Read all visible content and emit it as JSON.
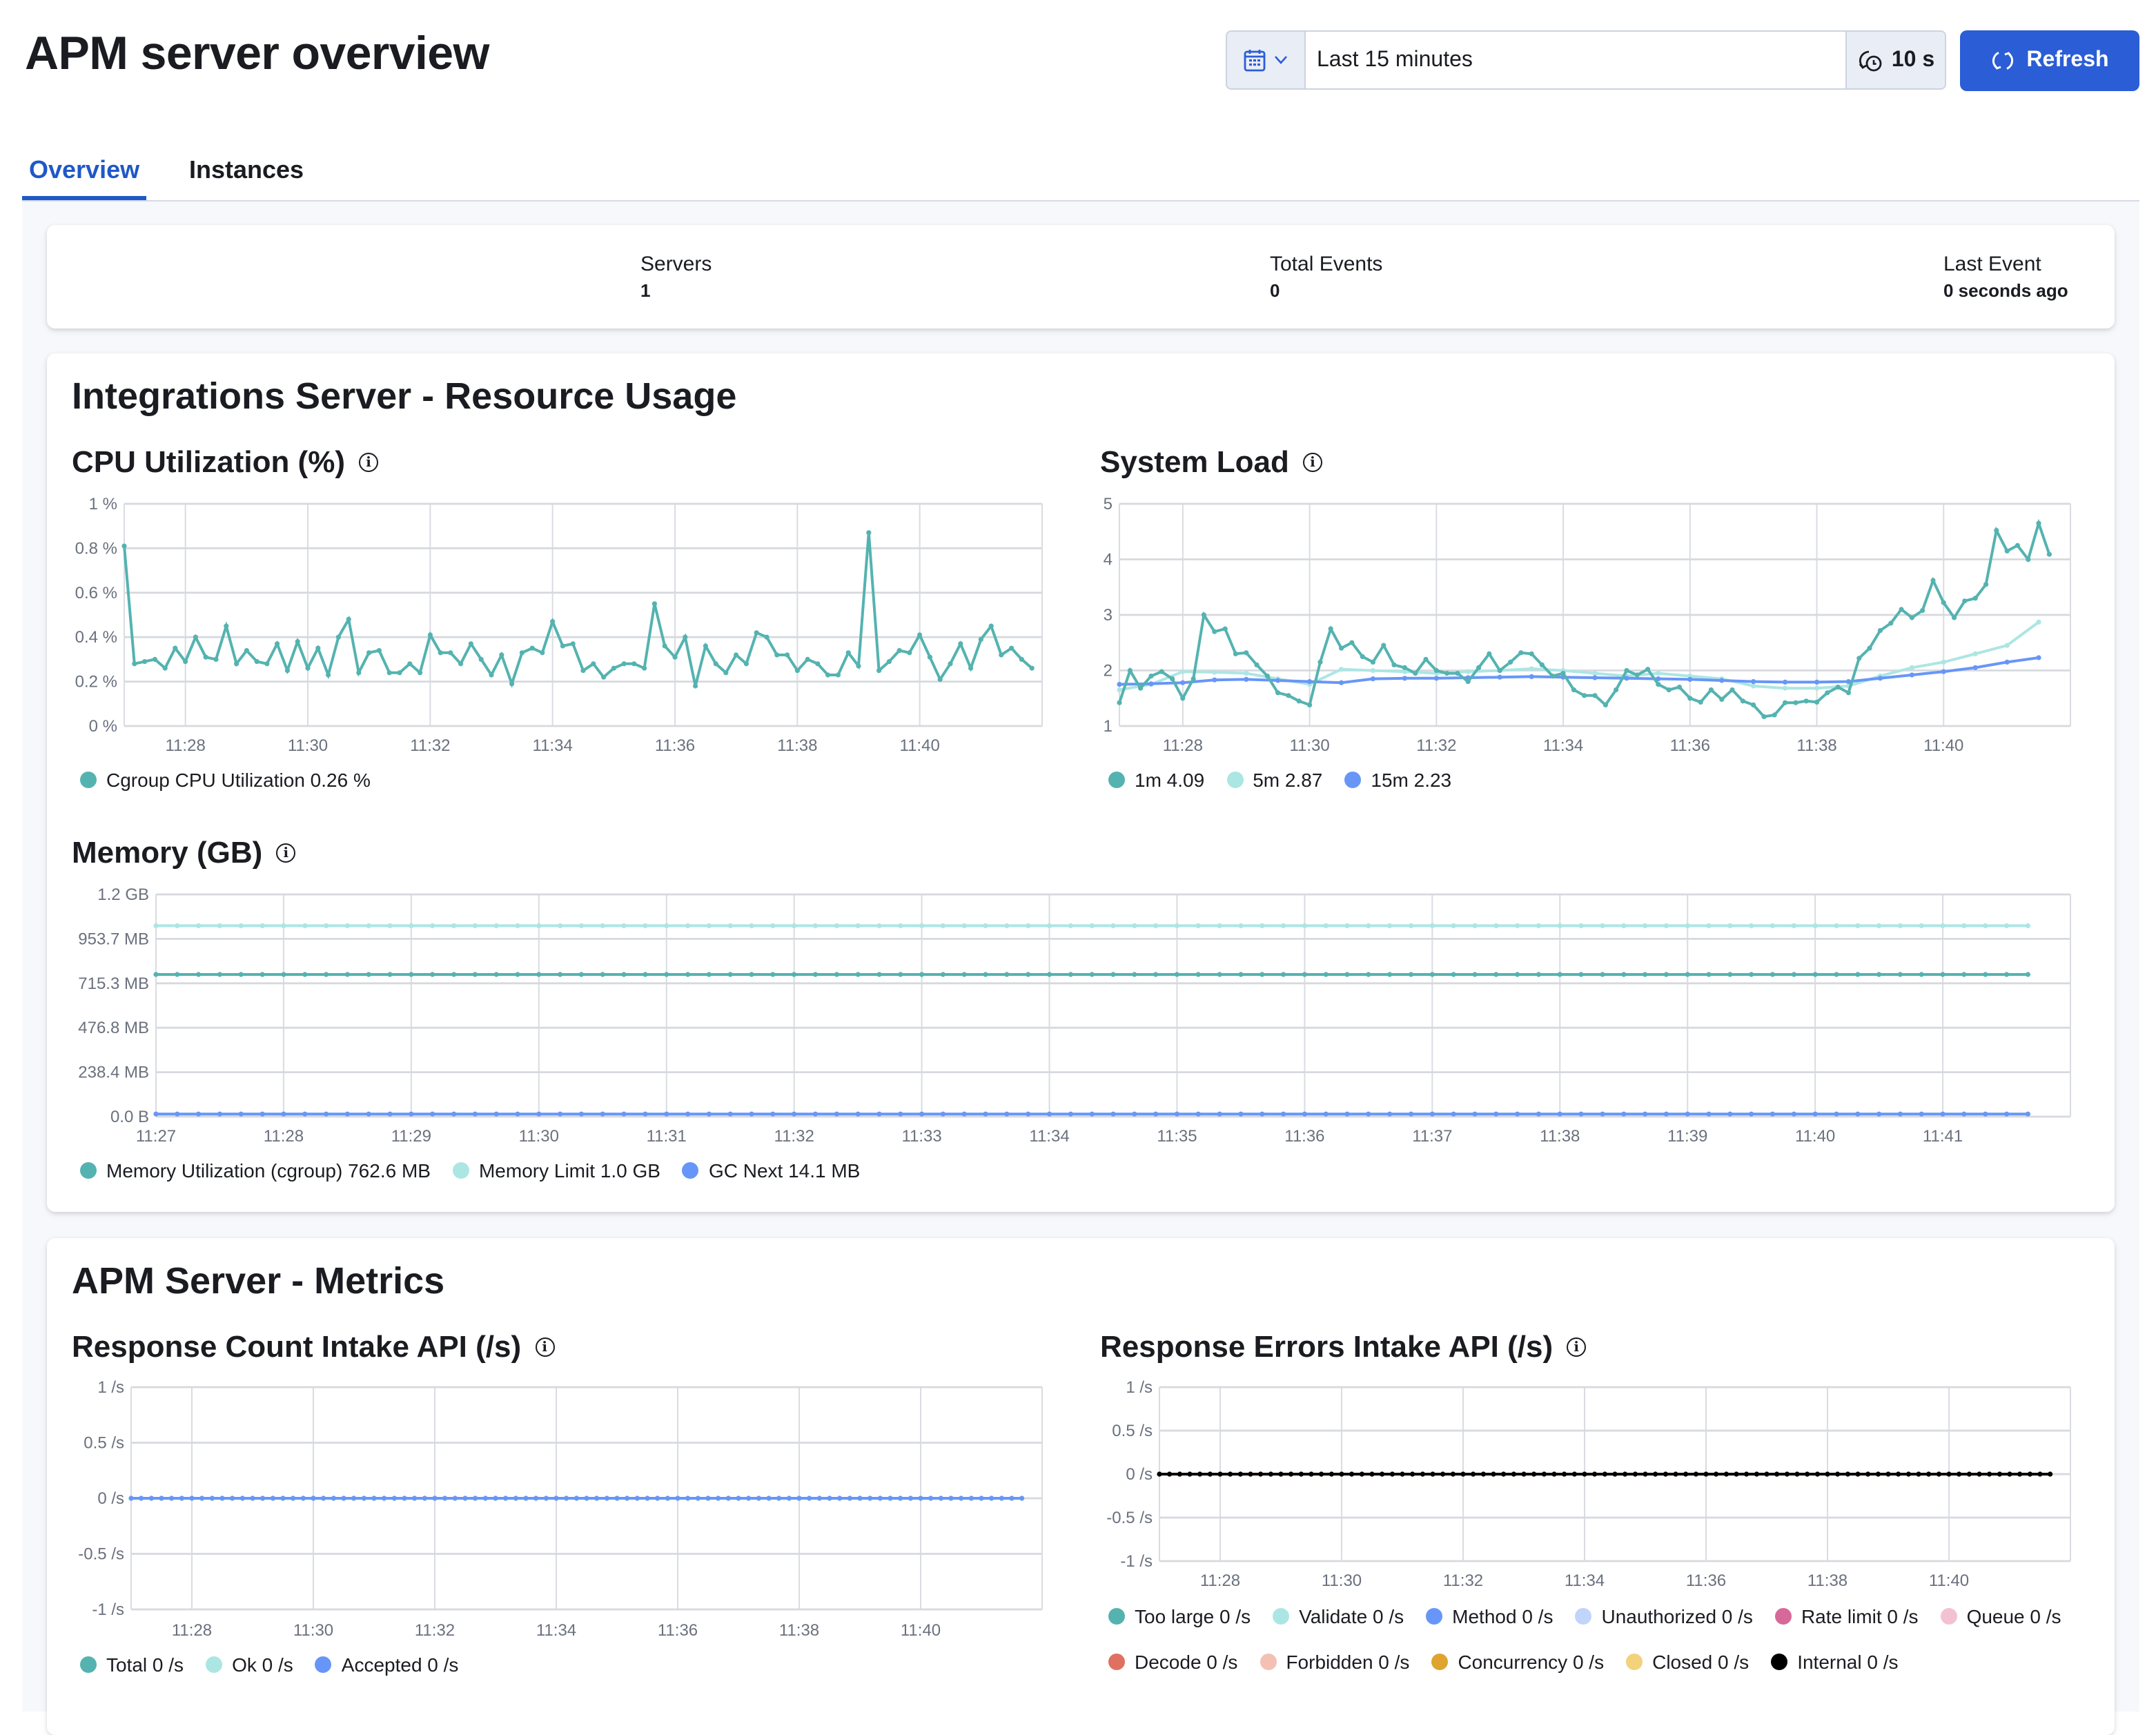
{
  "header": {
    "title": "APM server overview",
    "date_picker": {
      "icon": "calendar-icon",
      "range": "Last 15 minutes",
      "refresh_interval": "10 s"
    },
    "refresh_label": "Refresh",
    "accent": "#2b5dd6"
  },
  "tabs": [
    {
      "label": "Overview",
      "active": true
    },
    {
      "label": "Instances",
      "active": false
    }
  ],
  "stats": [
    {
      "label": "Servers",
      "value": "1"
    },
    {
      "label": "Total Events",
      "value": "0"
    },
    {
      "label": "Last Event",
      "value": "0 seconds ago"
    }
  ],
  "sections": {
    "resource": "Integrations Server - Resource Usage",
    "metrics": "APM Server - Metrics"
  },
  "chart_data": [
    {
      "id": "cpu",
      "type": "line",
      "title": "CPU Utilization (%)",
      "ylim": [
        0,
        1
      ],
      "yticks": [
        {
          "v": 0,
          "label": "0 %"
        },
        {
          "v": 0.2,
          "label": "0.2 %"
        },
        {
          "v": 0.4,
          "label": "0.4 %"
        },
        {
          "v": 0.6,
          "label": "0.6 %"
        },
        {
          "v": 0.8,
          "label": "0.8 %"
        },
        {
          "v": 1,
          "label": "1 %"
        }
      ],
      "xticks": [
        "11:28",
        "11:30",
        "11:32",
        "11:34",
        "11:36",
        "11:38",
        "11:40"
      ],
      "grid": true,
      "legend_position": "bottom-left",
      "series": [
        {
          "name": "Cgroup CPU Utilization",
          "legend": "Cgroup CPU Utilization 0.26 %",
          "color": "#54b3b0",
          "start": "11:27:00",
          "interval_s": 10,
          "values": [
            0.81,
            0.28,
            0.29,
            0.3,
            0.26,
            0.35,
            0.29,
            0.4,
            0.31,
            0.3,
            0.45,
            0.28,
            0.34,
            0.29,
            0.28,
            0.37,
            0.25,
            0.38,
            0.26,
            0.35,
            0.23,
            0.4,
            0.48,
            0.24,
            0.33,
            0.34,
            0.24,
            0.24,
            0.28,
            0.24,
            0.41,
            0.33,
            0.33,
            0.28,
            0.37,
            0.3,
            0.23,
            0.32,
            0.19,
            0.33,
            0.35,
            0.33,
            0.47,
            0.36,
            0.37,
            0.25,
            0.28,
            0.22,
            0.26,
            0.28,
            0.28,
            0.26,
            0.55,
            0.36,
            0.31,
            0.4,
            0.18,
            0.36,
            0.28,
            0.24,
            0.32,
            0.28,
            0.42,
            0.4,
            0.32,
            0.32,
            0.25,
            0.3,
            0.28,
            0.23,
            0.23,
            0.33,
            0.27,
            0.87,
            0.25,
            0.29,
            0.34,
            0.33,
            0.41,
            0.31,
            0.21,
            0.28,
            0.37,
            0.26,
            0.39,
            0.45,
            0.32,
            0.35,
            0.3,
            0.26
          ]
        }
      ]
    },
    {
      "id": "load",
      "type": "line",
      "title": "System Load",
      "ylim": [
        1,
        5
      ],
      "yticks": [
        {
          "v": 1,
          "label": "1"
        },
        {
          "v": 2,
          "label": "2"
        },
        {
          "v": 3,
          "label": "3"
        },
        {
          "v": 4,
          "label": "4"
        },
        {
          "v": 5,
          "label": "5"
        }
      ],
      "xticks": [
        "11:28",
        "11:30",
        "11:32",
        "11:34",
        "11:36",
        "11:38",
        "11:40"
      ],
      "grid": true,
      "legend_position": "bottom-left",
      "series": [
        {
          "name": "5m",
          "legend": "5m 2.87",
          "color": "#ace6e3",
          "start": "11:27:00",
          "interval_s": 30,
          "values": [
            1.65,
            1.75,
            1.98,
            1.97,
            1.95,
            1.85,
            1.75,
            2.02,
            2.0,
            1.98,
            1.95,
            1.98,
            2.0,
            2.03,
            2.0,
            1.95,
            1.9,
            1.95,
            1.9,
            1.85,
            1.72,
            1.68,
            1.68,
            1.72,
            1.9,
            2.05,
            2.15,
            2.3,
            2.45,
            2.87
          ]
        },
        {
          "name": "15m",
          "legend": "15m 2.23",
          "color": "#6896f8",
          "start": "11:27:00",
          "interval_s": 30,
          "values": [
            1.75,
            1.76,
            1.78,
            1.83,
            1.84,
            1.82,
            1.8,
            1.78,
            1.85,
            1.86,
            1.86,
            1.87,
            1.88,
            1.89,
            1.88,
            1.87,
            1.86,
            1.85,
            1.84,
            1.82,
            1.8,
            1.79,
            1.79,
            1.8,
            1.86,
            1.92,
            1.98,
            2.05,
            2.15,
            2.23
          ]
        },
        {
          "name": "1m",
          "legend": "1m 4.09",
          "color": "#54b3b0",
          "start": "11:27:00",
          "interval_s": 10,
          "values": [
            1.42,
            2.0,
            1.68,
            1.9,
            1.98,
            1.85,
            1.5,
            1.85,
            3.0,
            2.7,
            2.75,
            2.3,
            2.32,
            2.1,
            1.9,
            1.6,
            1.55,
            1.45,
            1.38,
            2.15,
            2.75,
            2.4,
            2.5,
            2.25,
            2.15,
            2.45,
            2.1,
            2.05,
            1.95,
            2.2,
            2.0,
            1.95,
            1.95,
            1.8,
            2.05,
            2.3,
            2.0,
            2.15,
            2.32,
            2.3,
            2.1,
            1.9,
            1.95,
            1.65,
            1.55,
            1.55,
            1.38,
            1.65,
            2.0,
            1.92,
            2.02,
            1.75,
            1.65,
            1.7,
            1.5,
            1.43,
            1.65,
            1.48,
            1.65,
            1.45,
            1.38,
            1.17,
            1.2,
            1.42,
            1.42,
            1.45,
            1.43,
            1.6,
            1.7,
            1.6,
            2.22,
            2.4,
            2.72,
            2.85,
            3.1,
            2.95,
            3.08,
            3.62,
            3.22,
            2.95,
            3.25,
            3.3,
            3.55,
            4.52,
            4.15,
            4.25,
            4.0,
            4.65,
            4.09
          ]
        }
      ],
      "legend_order": [
        "1m",
        "5m",
        "15m"
      ]
    },
    {
      "id": "memory",
      "type": "line",
      "title": "Memory (GB)",
      "ylim": [
        0,
        1192.1
      ],
      "yticks": [
        {
          "v": 0,
          "label": "0.0 B"
        },
        {
          "v": 238.4,
          "label": "238.4 MB"
        },
        {
          "v": 476.8,
          "label": "476.8 MB"
        },
        {
          "v": 715.3,
          "label": "715.3 MB"
        },
        {
          "v": 953.7,
          "label": "953.7 MB"
        },
        {
          "v": 1192.1,
          "label": "1.2 GB"
        }
      ],
      "xticks": [
        "11:27",
        "11:28",
        "11:29",
        "11:30",
        "11:31",
        "11:32",
        "11:33",
        "11:34",
        "11:35",
        "11:36",
        "11:37",
        "11:38",
        "11:39",
        "11:40",
        "11:41"
      ],
      "grid": true,
      "legend_position": "bottom-left",
      "series": [
        {
          "name": "Memory Limit",
          "legend": "Memory Limit 1.0 GB",
          "color": "#ace6e3",
          "value": 1024,
          "start": "11:27:00",
          "end": "11:41:40",
          "interval_s": 10
        },
        {
          "name": "Memory Utilization (cgroup)",
          "legend": "Memory Utilization (cgroup) 762.6 MB",
          "color": "#54b3b0",
          "value": 762.6,
          "start": "11:27:00",
          "end": "11:41:40",
          "interval_s": 10
        },
        {
          "name": "GC Next",
          "legend": "GC Next 14.1 MB",
          "color": "#6896f8",
          "value": 14.1,
          "start": "11:27:00",
          "end": "11:41:40",
          "interval_s": 10
        }
      ],
      "legend_order": [
        "Memory Utilization (cgroup)",
        "Memory Limit",
        "GC Next"
      ]
    },
    {
      "id": "count",
      "type": "line",
      "title": "Response Count Intake API (/s)",
      "ylim": [
        -1,
        1
      ],
      "yticks": [
        {
          "v": -1,
          "label": "-1 /s"
        },
        {
          "v": -0.5,
          "label": "-0.5 /s"
        },
        {
          "v": 0,
          "label": "0 /s"
        },
        {
          "v": 0.5,
          "label": "0.5 /s"
        },
        {
          "v": 1,
          "label": "1 /s"
        }
      ],
      "xticks": [
        "11:28",
        "11:30",
        "11:32",
        "11:34",
        "11:36",
        "11:38",
        "11:40"
      ],
      "grid": true,
      "legend_position": "bottom-left",
      "series": [
        {
          "name": "Total",
          "legend": "Total 0 /s",
          "color": "#54b3b0",
          "value": 0,
          "start": "11:27:00",
          "end": "11:41:40",
          "interval_s": 10
        },
        {
          "name": "Ok",
          "legend": "Ok 0 /s",
          "color": "#ace6e3",
          "value": 0,
          "start": "11:27:00",
          "end": "11:41:40",
          "interval_s": 10
        },
        {
          "name": "Accepted",
          "legend": "Accepted 0 /s",
          "color": "#6896f8",
          "value": 0,
          "start": "11:27:00",
          "end": "11:41:40",
          "interval_s": 10
        }
      ]
    },
    {
      "id": "errors",
      "type": "line",
      "title": "Response Errors Intake API (/s)",
      "ylim": [
        -1,
        1
      ],
      "yticks": [
        {
          "v": -1,
          "label": "-1 /s"
        },
        {
          "v": -0.5,
          "label": "-0.5 /s"
        },
        {
          "v": 0,
          "label": "0 /s"
        },
        {
          "v": 0.5,
          "label": "0.5 /s"
        },
        {
          "v": 1,
          "label": "1 /s"
        }
      ],
      "xticks": [
        "11:28",
        "11:30",
        "11:32",
        "11:34",
        "11:36",
        "11:38",
        "11:40"
      ],
      "grid": true,
      "legend_position": "bottom-left",
      "series": [
        {
          "name": "Too large",
          "legend": "Too large 0 /s",
          "color": "#54b3b0",
          "value": 0,
          "start": "11:27:00",
          "end": "11:41:40",
          "interval_s": 10
        },
        {
          "name": "Validate",
          "legend": "Validate 0 /s",
          "color": "#ace6e3",
          "value": 0,
          "start": "11:27:00",
          "end": "11:41:40",
          "interval_s": 10
        },
        {
          "name": "Method",
          "legend": "Method 0 /s",
          "color": "#6896f8",
          "value": 0,
          "start": "11:27:00",
          "end": "11:41:40",
          "interval_s": 10
        },
        {
          "name": "Unauthorized",
          "legend": "Unauthorized 0 /s",
          "color": "#c1d4fb",
          "value": 0,
          "start": "11:27:00",
          "end": "11:41:40",
          "interval_s": 10
        },
        {
          "name": "Rate limit",
          "legend": "Rate limit 0 /s",
          "color": "#d6699a",
          "value": 0,
          "start": "11:27:00",
          "end": "11:41:40",
          "interval_s": 10
        },
        {
          "name": "Queue",
          "legend": "Queue 0 /s",
          "color": "#f2c2d3",
          "value": 0,
          "start": "11:27:00",
          "end": "11:41:40",
          "interval_s": 10
        },
        {
          "name": "Decode",
          "legend": "Decode 0 /s",
          "color": "#e07060",
          "value": 0,
          "start": "11:27:00",
          "end": "11:41:40",
          "interval_s": 10
        },
        {
          "name": "Forbidden",
          "legend": "Forbidden 0 /s",
          "color": "#f4c0b4",
          "value": 0,
          "start": "11:27:00",
          "end": "11:41:40",
          "interval_s": 10
        },
        {
          "name": "Concurrency",
          "legend": "Concurrency 0 /s",
          "color": "#dea42f",
          "value": 0,
          "start": "11:27:00",
          "end": "11:41:40",
          "interval_s": 10
        },
        {
          "name": "Closed",
          "legend": "Closed 0 /s",
          "color": "#f3d27c",
          "value": 0,
          "start": "11:27:00",
          "end": "11:41:40",
          "interval_s": 10
        },
        {
          "name": "Internal",
          "legend": "Internal 0 /s",
          "color": "#000000",
          "value": 0,
          "start": "11:27:00",
          "end": "11:41:40",
          "interval_s": 10
        }
      ]
    }
  ]
}
